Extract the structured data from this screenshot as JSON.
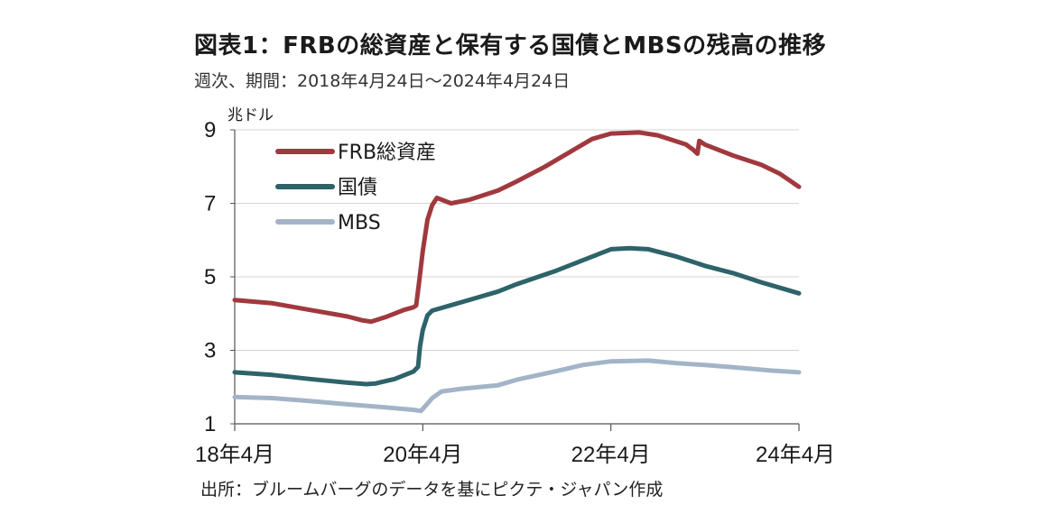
{
  "title": "図表1：FRBの総資産と保有する国債とMBSの残高の推移",
  "subtitle": "週次、期間：2018年4月24日～2024年4月24日",
  "source": "出所：ブルームバーグのデータを基にピクテ・ジャパン作成",
  "chart_data": {
    "type": "line",
    "ylabel": "兆ドル",
    "ylim": [
      1,
      9
    ],
    "yticks": [
      1,
      3,
      5,
      7,
      9
    ],
    "xlim": [
      2018.0,
      2024.0
    ],
    "xticks": [
      {
        "x": 2018.0,
        "label": "18年4月"
      },
      {
        "x": 2020.0,
        "label": "20年4月"
      },
      {
        "x": 2022.0,
        "label": "22年4月"
      },
      {
        "x": 2024.0,
        "label": "24年4月"
      }
    ],
    "grid": "horizontal",
    "legend_position": "top-left",
    "series": [
      {
        "name": "FRB総資産",
        "color": "#a0393e",
        "points": [
          [
            2018.0,
            4.37
          ],
          [
            2018.4,
            4.28
          ],
          [
            2018.8,
            4.1
          ],
          [
            2019.2,
            3.92
          ],
          [
            2019.35,
            3.82
          ],
          [
            2019.45,
            3.78
          ],
          [
            2019.6,
            3.9
          ],
          [
            2019.8,
            4.1
          ],
          [
            2019.9,
            4.17
          ],
          [
            2019.93,
            4.22
          ],
          [
            2019.96,
            4.85
          ],
          [
            2020.0,
            5.7
          ],
          [
            2020.05,
            6.55
          ],
          [
            2020.1,
            6.95
          ],
          [
            2020.15,
            7.15
          ],
          [
            2020.3,
            7.0
          ],
          [
            2020.5,
            7.1
          ],
          [
            2020.8,
            7.35
          ],
          [
            2021.0,
            7.6
          ],
          [
            2021.3,
            8.0
          ],
          [
            2021.6,
            8.45
          ],
          [
            2021.8,
            8.75
          ],
          [
            2022.0,
            8.9
          ],
          [
            2022.3,
            8.93
          ],
          [
            2022.5,
            8.85
          ],
          [
            2022.8,
            8.6
          ],
          [
            2022.88,
            8.45
          ],
          [
            2022.92,
            8.35
          ],
          [
            2022.94,
            8.7
          ],
          [
            2023.0,
            8.6
          ],
          [
            2023.3,
            8.3
          ],
          [
            2023.6,
            8.05
          ],
          [
            2023.8,
            7.8
          ],
          [
            2024.0,
            7.45
          ]
        ]
      },
      {
        "name": "国債",
        "color": "#2d6369",
        "points": [
          [
            2018.0,
            2.4
          ],
          [
            2018.4,
            2.33
          ],
          [
            2018.8,
            2.22
          ],
          [
            2019.2,
            2.12
          ],
          [
            2019.4,
            2.08
          ],
          [
            2019.5,
            2.1
          ],
          [
            2019.7,
            2.22
          ],
          [
            2019.9,
            2.42
          ],
          [
            2019.95,
            2.55
          ],
          [
            2019.97,
            3.1
          ],
          [
            2020.0,
            3.55
          ],
          [
            2020.05,
            3.95
          ],
          [
            2020.1,
            4.08
          ],
          [
            2020.4,
            4.3
          ],
          [
            2020.8,
            4.6
          ],
          [
            2021.0,
            4.8
          ],
          [
            2021.4,
            5.15
          ],
          [
            2021.7,
            5.45
          ],
          [
            2022.0,
            5.75
          ],
          [
            2022.2,
            5.78
          ],
          [
            2022.4,
            5.75
          ],
          [
            2022.7,
            5.55
          ],
          [
            2023.0,
            5.3
          ],
          [
            2023.3,
            5.1
          ],
          [
            2023.6,
            4.85
          ],
          [
            2023.8,
            4.7
          ],
          [
            2024.0,
            4.55
          ]
        ]
      },
      {
        "name": "MBS",
        "color": "#a3b4c8",
        "points": [
          [
            2018.0,
            1.73
          ],
          [
            2018.4,
            1.7
          ],
          [
            2018.8,
            1.62
          ],
          [
            2019.2,
            1.53
          ],
          [
            2019.6,
            1.45
          ],
          [
            2019.9,
            1.38
          ],
          [
            2019.98,
            1.35
          ],
          [
            2020.05,
            1.55
          ],
          [
            2020.1,
            1.7
          ],
          [
            2020.2,
            1.88
          ],
          [
            2020.4,
            1.95
          ],
          [
            2020.8,
            2.05
          ],
          [
            2021.0,
            2.2
          ],
          [
            2021.4,
            2.42
          ],
          [
            2021.7,
            2.6
          ],
          [
            2022.0,
            2.7
          ],
          [
            2022.4,
            2.72
          ],
          [
            2022.7,
            2.65
          ],
          [
            2023.0,
            2.6
          ],
          [
            2023.4,
            2.52
          ],
          [
            2023.7,
            2.45
          ],
          [
            2024.0,
            2.4
          ]
        ]
      }
    ]
  }
}
